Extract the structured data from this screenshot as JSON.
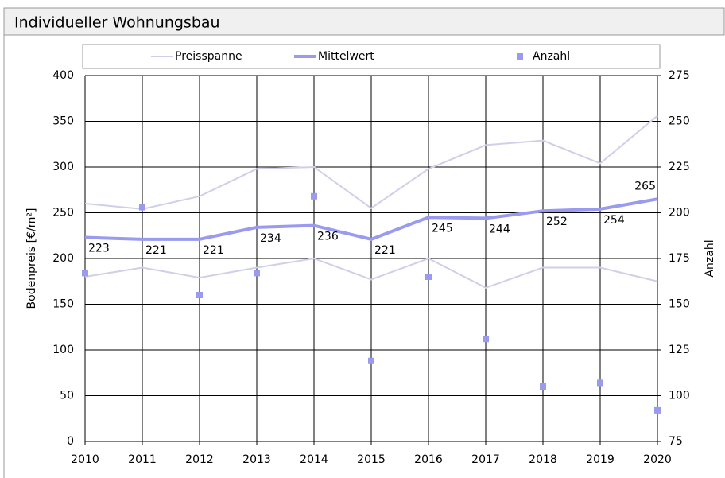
{
  "chart_data": {
    "type": "line",
    "title": "Individueller Wohnungsbau",
    "categories": [
      "2010",
      "2011",
      "2012",
      "2013",
      "2014",
      "2015",
      "2016",
      "2017",
      "2018",
      "2019",
      "2020"
    ],
    "ylabel": "Bodenpreis [€/m²]",
    "y2label": "Anzahl",
    "ylim": [
      0,
      400
    ],
    "yticks": [
      0,
      50,
      100,
      150,
      200,
      250,
      300,
      350,
      400
    ],
    "y2lim": [
      75,
      275
    ],
    "y2ticks": [
      75,
      100,
      125,
      150,
      175,
      200,
      225,
      250,
      275
    ],
    "grid": true,
    "series": [
      {
        "name": "Preisspanne",
        "color": "#cfcfea",
        "high": [
          260,
          254,
          268,
          298,
          300,
          255,
          298,
          324,
          329,
          304,
          356
        ],
        "low": [
          180,
          190,
          179,
          190,
          200,
          177,
          200,
          168,
          190,
          190,
          175
        ]
      },
      {
        "name": "Mittelwert",
        "color": "#9a9aee",
        "values": [
          223,
          221,
          221,
          234,
          236,
          221,
          245,
          244,
          252,
          254,
          265
        ]
      },
      {
        "name": "Anzahl",
        "color": "#9a9aee",
        "axis": "y2",
        "values": [
          167,
          203,
          155,
          167,
          209,
          119,
          165,
          131,
          105,
          107,
          92
        ]
      }
    ]
  }
}
